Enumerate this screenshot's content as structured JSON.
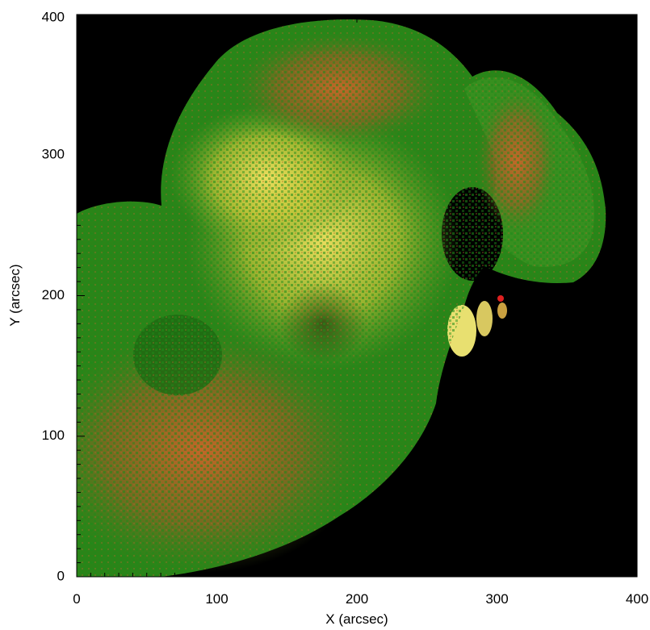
{
  "chart_data": {
    "type": "heatmap",
    "title": "",
    "xlabel": "X (arcsec)",
    "ylabel": "Y (arcsec)",
    "xlim": [
      0,
      400
    ],
    "ylim": [
      0,
      400
    ],
    "x_ticks": [
      "0",
      "100",
      "200",
      "300",
      "400"
    ],
    "y_ticks": [
      "0",
      "100",
      "200",
      "300",
      "400"
    ],
    "grid": false,
    "legend": "none",
    "colors": {
      "background": "#000000",
      "green_channel": "#2f8f16",
      "yellow_channel": "#d8d13a",
      "red_channel": "#c8542a",
      "axis": "#000000"
    }
  }
}
